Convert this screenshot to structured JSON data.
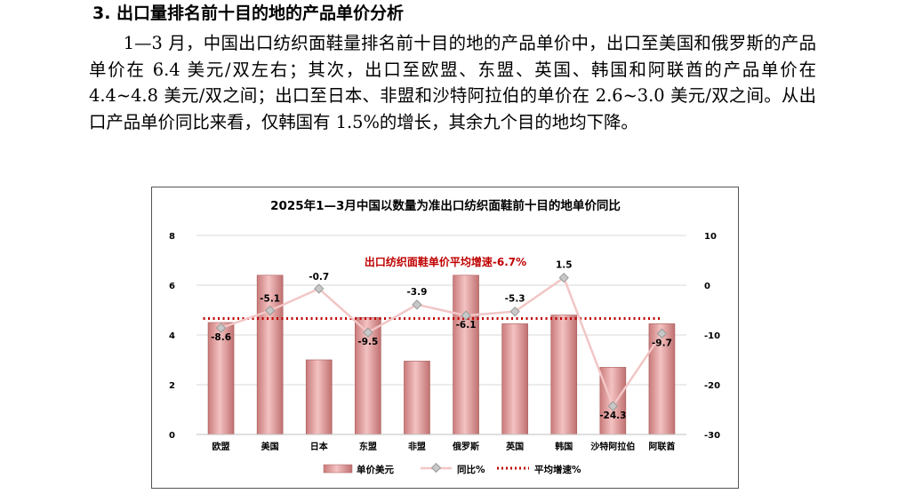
{
  "section": {
    "heading": "3. 出口量排名前十目的地的产品单价分析",
    "paragraph": "1—3 月，中国出口纺织面鞋量排名前十目的地的产品单价中，出口至美国和俄罗斯的产品单价在 6.4 美元/双左右；其次，出口至欧盟、东盟、英国、韩国和阿联酋的产品单价在 4.4~4.8 美元/双之间；出口至日本、非盟和沙特阿拉伯的单价在 2.6~3.0 美元/双之间。从出口产品单价同比来看，仅韩国有 1.5%的增长，其余九个目的地均下降。"
  },
  "chart_data": {
    "type": "bar",
    "title": "2025年1—3月中国以数量为准出口纺织面鞋前十目的地单价同比",
    "categories": [
      "欧盟",
      "美国",
      "日本",
      "东盟",
      "非盟",
      "俄罗斯",
      "英国",
      "韩国",
      "沙特阿拉伯",
      "阿联酋"
    ],
    "series": [
      {
        "name": "单价美元",
        "type": "bar",
        "axis": "left",
        "values": [
          4.5,
          6.4,
          3.0,
          4.7,
          2.95,
          6.4,
          4.45,
          4.8,
          2.7,
          4.45
        ],
        "color": "#e8a0a0"
      },
      {
        "name": "同比%",
        "type": "line",
        "axis": "right",
        "values": [
          -8.6,
          -5.1,
          -0.7,
          -9.5,
          -3.9,
          -6.1,
          -5.3,
          1.5,
          -24.3,
          -9.7
        ],
        "labels": [
          "-8.6",
          "-5.1",
          "-0.7",
          "-9.5",
          "-3.9",
          "-6.1",
          "-5.3",
          "1.5",
          "-24.3",
          "-9.7"
        ],
        "color": "#f2c6c6"
      },
      {
        "name": "平均增速%",
        "type": "line",
        "axis": "right",
        "value": -6.7,
        "color": "#c00000"
      }
    ],
    "annotation": "出口纺织面鞋单价平均增速-6.7%",
    "y_left": {
      "min": 0,
      "max": 8,
      "ticks": [
        0,
        2,
        4,
        6,
        8
      ],
      "tick_labels": [
        "0",
        "2",
        "4",
        "6",
        "8"
      ]
    },
    "y_right": {
      "min": -30,
      "max": 10,
      "ticks": [
        -30,
        -20,
        -10,
        0,
        10
      ],
      "tick_labels": [
        "-30",
        "-20",
        "-10",
        "0",
        "10"
      ]
    },
    "grid": true,
    "legend_position": "bottom"
  }
}
